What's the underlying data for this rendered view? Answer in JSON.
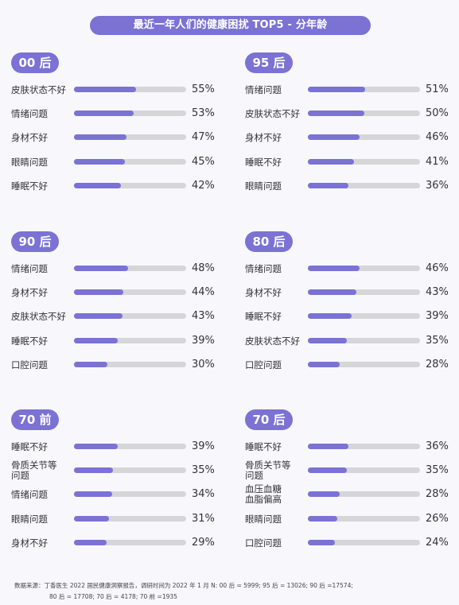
{
  "title": "最近一年人们的健康困扰 TOP5 - 分年龄",
  "chart_data": [
    {
      "type": "bar",
      "group": "00 后",
      "categories": [
        "皮肤状态不好",
        "情绪问题",
        "身材不好",
        "眼睛问题",
        "睡眠不好"
      ],
      "values": [
        55,
        53,
        47,
        45,
        42
      ],
      "labels": [
        "55%",
        "53%",
        "47%",
        "45%",
        "42%"
      ]
    },
    {
      "type": "bar",
      "group": "95 后",
      "categories": [
        "情绪问题",
        "皮肤状态不好",
        "身材不好",
        "睡眠不好",
        "眼睛问题"
      ],
      "values": [
        51,
        50,
        46,
        41,
        36
      ],
      "labels": [
        "51%",
        "50%",
        "46%",
        "41%",
        "36%"
      ]
    },
    {
      "type": "bar",
      "group": "90 后",
      "categories": [
        "情绪问题",
        "身材不好",
        "皮肤状态不好",
        "睡眠不好",
        "口腔问题"
      ],
      "values": [
        48,
        44,
        43,
        39,
        30
      ],
      "labels": [
        "48%",
        "44%",
        "43%",
        "39%",
        "30%"
      ]
    },
    {
      "type": "bar",
      "group": "80 后",
      "categories": [
        "情绪问题",
        "身材不好",
        "睡眠不好",
        "皮肤状态不好",
        "口腔问题"
      ],
      "values": [
        46,
        43,
        39,
        35,
        28
      ],
      "labels": [
        "46%",
        "43%",
        "39%",
        "35%",
        "28%"
      ]
    },
    {
      "type": "bar",
      "group": "70 前",
      "categories": [
        "睡眠不好",
        "骨质关节等问题",
        "情绪问题",
        "眼睛问题",
        "身材不好"
      ],
      "values": [
        39,
        35,
        34,
        31,
        29
      ],
      "labels": [
        "39%",
        "35%",
        "34%",
        "31%",
        "29%"
      ]
    },
    {
      "type": "bar",
      "group": "70 后",
      "categories": [
        "睡眠不好",
        "骨质关节等问题",
        "血压血糖血脂偏高",
        "眼睛问题",
        "口腔问题"
      ],
      "values": [
        36,
        35,
        28,
        26,
        24
      ],
      "labels": [
        "36%",
        "35%",
        "28%",
        "26%",
        "24%"
      ]
    }
  ],
  "xlim": [
    0,
    100
  ],
  "colors": {
    "accent": "#7b72d4",
    "track": "#d6d6d9"
  },
  "footnote_line1": "数据来源：丁香医生 2022 国民健康洞察报告，调研时间为 2022 年 1 月 N:  00 后 = 5999;  95 后 = 13026;  90 后 =17574;",
  "footnote_line2": "80 后 = 17708;  70 后 = 4178;  70 前 =1935"
}
